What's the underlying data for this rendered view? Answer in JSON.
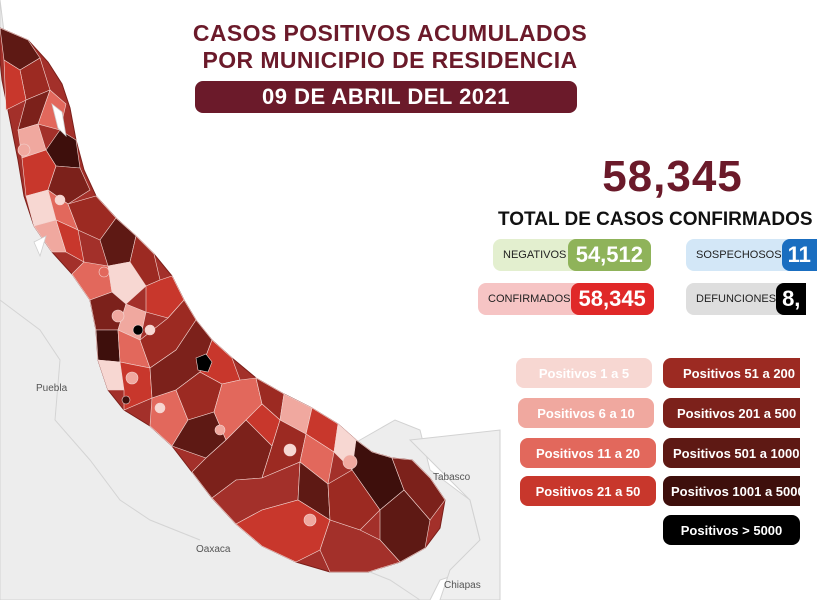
{
  "header": {
    "title_line1": "CASOS POSITIVOS ACUMULADOS",
    "title_line2": "POR MUNICIPIO DE RESIDENCIA",
    "date": "09 DE ABRIL DEL 2021"
  },
  "summary": {
    "total": "58,345",
    "total_label": "TOTAL DE CASOS CONFIRMADOS"
  },
  "stats": {
    "negativos": {
      "label": "NEGATIVOS",
      "value": "54,512",
      "color": "#8fb35a",
      "bg": "#e3efcf"
    },
    "sospechosos": {
      "label": "SOSPECHOSOS",
      "value": "11",
      "color": "#1a6ec0",
      "bg": "#d3e7f7"
    },
    "confirmados": {
      "label": "CONFIRMADOS",
      "value": "58,345",
      "color": "#e02828",
      "bg": "#f6c4c4"
    },
    "defunciones": {
      "label": "DEFUNCIONES",
      "value": "8,",
      "color": "#000000",
      "bg": "#dedede"
    }
  },
  "legend": [
    {
      "label": "Positivos 1 a 5",
      "color": "#f7d7d2",
      "text_color": "#ffffff"
    },
    {
      "label": "Positivos 6 a 10",
      "color": "#f0a89f",
      "text_color": "#ffffff"
    },
    {
      "label": "Positivos 11 a 20",
      "color": "#e2685c",
      "text_color": "#ffffff"
    },
    {
      "label": "Positivos 21 a 50",
      "color": "#c8372c",
      "text_color": "#ffffff"
    },
    {
      "label": "Positivos 51 a 200",
      "color": "#9c2a22",
      "text_color": "#ffffff"
    },
    {
      "label": "Positivos 201 a 500",
      "color": "#7c211b",
      "text_color": "#ffffff"
    },
    {
      "label": "Positivos 501 a 1000",
      "color": "#5e1914",
      "text_color": "#ffffff"
    },
    {
      "label": "Positivos 1001 a 5000",
      "color": "#3e0f0c",
      "text_color": "#ffffff"
    },
    {
      "label": "Positivos > 5000",
      "color": "#000000",
      "text_color": "#ffffff"
    }
  ],
  "map": {
    "state_labels": [
      "Puebla",
      "Oaxaca",
      "Tabasco",
      "Chiapas"
    ],
    "colors": {
      "neighbor": "#ededed",
      "outline": "#cfcfcf"
    }
  }
}
